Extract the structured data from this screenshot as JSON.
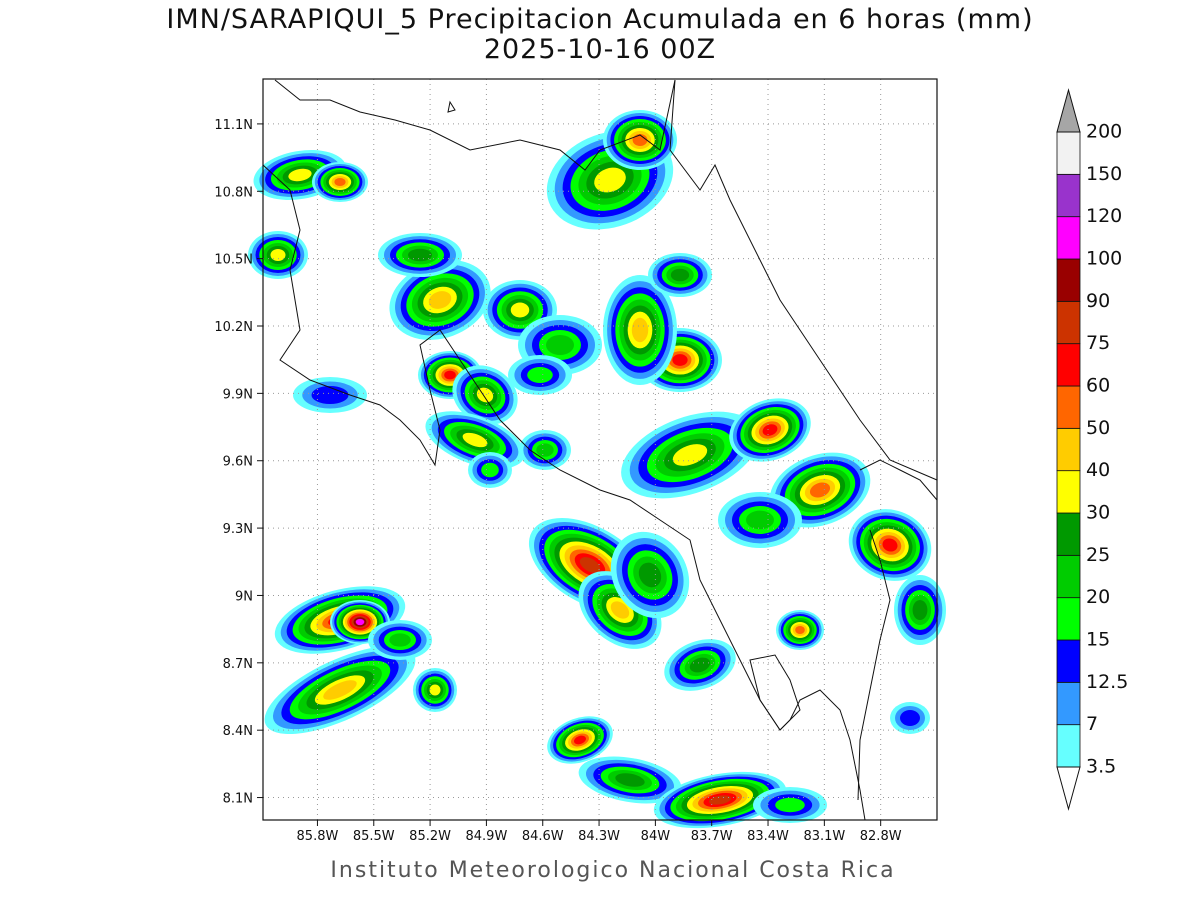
{
  "title": [
    "IMN/SARAPIQUI_5 Precipitacion Acumulada en 6 horas (mm)",
    "2025-10-16 00Z"
  ],
  "map": {
    "xlim": [
      -86.09,
      -82.5
    ],
    "ylim": [
      8.0,
      11.3
    ],
    "xticks": [
      {
        "value": -85.8,
        "label": "85.8W"
      },
      {
        "value": -85.5,
        "label": "85.5W"
      },
      {
        "value": -85.2,
        "label": "85.2W"
      },
      {
        "value": -84.9,
        "label": "84.9W"
      },
      {
        "value": -84.6,
        "label": "84.6W"
      },
      {
        "value": -84.3,
        "label": "84.3W"
      },
      {
        "value": -84.0,
        "label": "84W"
      },
      {
        "value": -83.7,
        "label": "83.7W"
      },
      {
        "value": -83.4,
        "label": "83.4W"
      },
      {
        "value": -83.1,
        "label": "83.1W"
      },
      {
        "value": -82.8,
        "label": "82.8W"
      }
    ],
    "yticks": [
      {
        "value": 8.1,
        "label": "8.1N"
      },
      {
        "value": 8.4,
        "label": "8.4N"
      },
      {
        "value": 8.7,
        "label": "8.7N"
      },
      {
        "value": 9.0,
        "label": "9N"
      },
      {
        "value": 9.3,
        "label": "9.3N"
      },
      {
        "value": 9.6,
        "label": "9.6N"
      },
      {
        "value": 9.9,
        "label": "9.9N"
      },
      {
        "value": 10.2,
        "label": "10.2N"
      },
      {
        "value": 10.5,
        "label": "10.5N"
      },
      {
        "value": 10.8,
        "label": "10.8N"
      },
      {
        "value": 11.1,
        "label": "11.1N"
      }
    ],
    "grid": true
  },
  "colorbar": {
    "levels": [
      3.5,
      7,
      12.5,
      15,
      20,
      25,
      30,
      40,
      50,
      60,
      75,
      90,
      100,
      120,
      150,
      200
    ],
    "colors": [
      "#66ffff",
      "#3399ff",
      "#0000ff",
      "#00ff00",
      "#00cc00",
      "#009900",
      "#ffff00",
      "#ffcc00",
      "#ff6600",
      "#ff0000",
      "#cc3300",
      "#990000",
      "#ff00ff",
      "#9933cc",
      "#f2f2f2"
    ],
    "under_color": "#ffffff",
    "over_color": "#a6a6a6"
  },
  "footer": "Instituto Meteorologico Nacional Costa Rica"
}
